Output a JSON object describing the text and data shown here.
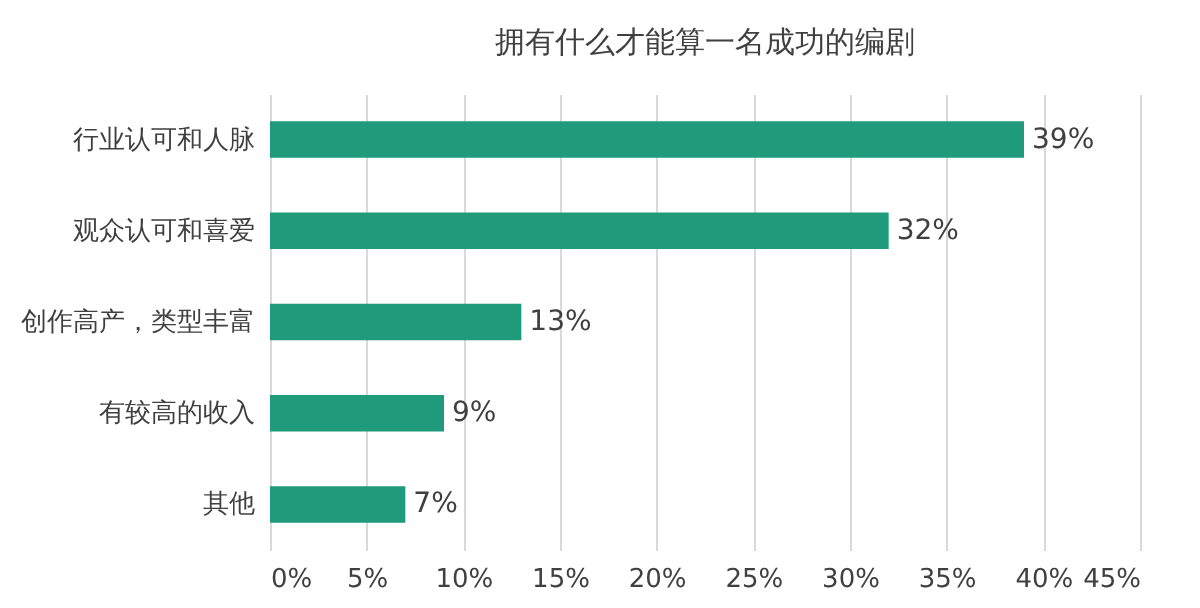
{
  "chart_data": {
    "type": "bar",
    "orientation": "horizontal",
    "title": "拥有什么才能算一名成功的编剧",
    "categories": [
      "行业认可和人脉",
      "观众认可和喜爱",
      "创作高产，类型丰富",
      "有较高的收入",
      "其他"
    ],
    "values": [
      39,
      32,
      13,
      9,
      7
    ],
    "value_labels": [
      "39%",
      "32%",
      "13%",
      "9%",
      "7%"
    ],
    "color": "#1f9a7a",
    "xlim": [
      0,
      45
    ],
    "xticks": [
      {
        "value": 0,
        "label": "0%"
      },
      {
        "value": 5,
        "label": "5%"
      },
      {
        "value": 10,
        "label": "10%"
      },
      {
        "value": 15,
        "label": "15%"
      },
      {
        "value": 20,
        "label": "20%"
      },
      {
        "value": 25,
        "label": "25%"
      },
      {
        "value": 30,
        "label": "30%"
      },
      {
        "value": 35,
        "label": "35%"
      },
      {
        "value": 40,
        "label": "40%"
      },
      {
        "value": 45,
        "label": "45%"
      }
    ],
    "grid": "x"
  }
}
